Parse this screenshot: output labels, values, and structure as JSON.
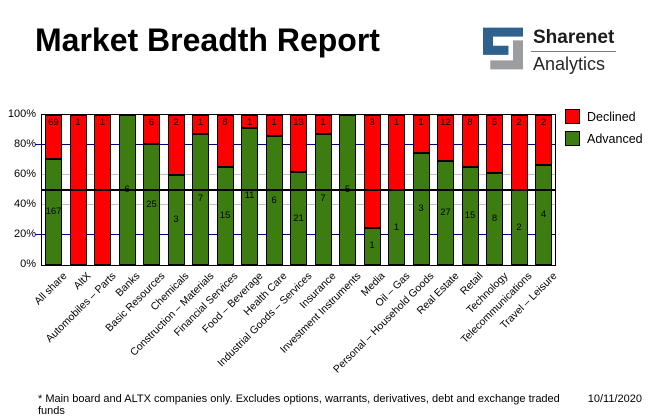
{
  "header": {
    "title": "Market Breadth Report",
    "brand": {
      "name": "Sharenet",
      "sub": "Analytics",
      "icon_blue": "#2e618e",
      "icon_gray": "#9b9da0"
    }
  },
  "legend": [
    {
      "label": "Declined",
      "color": "#ff0000"
    },
    {
      "label": "Advanced",
      "color": "#3d7c10"
    }
  ],
  "chart_data": {
    "type": "bar",
    "stacked": true,
    "percent_stacked": true,
    "title": "Market Breadth Report",
    "categories": [
      "All share",
      "AltX",
      "Automobiles – Parts",
      "Banks",
      "Basic Resources",
      "Chemicals",
      "Construction – Materials",
      "Financial Services",
      "Food – Beverage",
      "Health Care",
      "Industrial Goods – Services",
      "Insurance",
      "Investment Instruments",
      "Media",
      "Oil – Gas",
      "Personal – Household Goods",
      "Real Estate",
      "Retail",
      "Technology",
      "Telecommunications",
      "Travel – Leisure"
    ],
    "series": [
      {
        "name": "Declined",
        "color": "#ff0000",
        "values": [
          69,
          1,
          1,
          0,
          6,
          2,
          1,
          8,
          1,
          1,
          13,
          1,
          0,
          3,
          1,
          1,
          12,
          8,
          5,
          2,
          2
        ]
      },
      {
        "name": "Advanced",
        "color": "#3d7c10",
        "values": [
          167,
          0,
          0,
          6,
          25,
          3,
          7,
          15,
          11,
          6,
          21,
          7,
          5,
          1,
          1,
          3,
          27,
          15,
          8,
          2,
          4
        ]
      }
    ],
    "y_ticks": [
      "100%",
      "80%",
      "60%",
      "40%",
      "20%",
      "0%"
    ],
    "ylim": [
      0,
      100
    ],
    "legend_position": "right",
    "gridlines": {
      "navy_pcts": [
        80,
        20
      ],
      "silver_pcts": [
        60,
        40
      ],
      "black_pcts": [
        50
      ],
      "navy_color": "#000080",
      "silver_color": "#c0c0c0",
      "black_color": "#000000"
    }
  },
  "footer": {
    "note": "* Main board and ALTX companies only. Excludes options, warrants, derivatives, debt and exchange traded funds",
    "date": "10/11/2020"
  }
}
